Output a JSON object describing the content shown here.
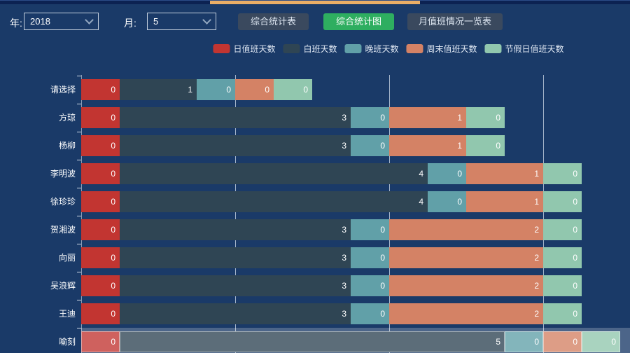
{
  "header": {
    "year_label": "年:",
    "year_value": "2018",
    "month_label": "月:",
    "month_value": "5",
    "buttons": [
      {
        "label": "综合统计表",
        "style": "dark"
      },
      {
        "label": "综合统计图",
        "style": "green",
        "active": true
      },
      {
        "label": "月值班情况一览表",
        "style": "dark"
      }
    ],
    "active_tab_color": "#e9ad66",
    "accent_green": "#2eae60"
  },
  "legend": [
    {
      "label": "日值班天数",
      "color": "#c23531"
    },
    {
      "label": "白班天数",
      "color": "#2f4554"
    },
    {
      "label": "晚班天数",
      "color": "#61a0a8"
    },
    {
      "label": "周末值班天数",
      "color": "#d48265"
    },
    {
      "label": "节假日值班天数",
      "color": "#91c7ae"
    }
  ],
  "chart_data": {
    "type": "bar",
    "orientation": "horizontal",
    "stacked": true,
    "categories": [
      "请选择",
      "方琼",
      "杨柳",
      "李明波",
      "徐珍珍",
      "贺湘波",
      "向丽",
      "吴浪辉",
      "王迪",
      "喻刻"
    ],
    "series": [
      {
        "name": "日值班天数",
        "color": "#c23531",
        "values": [
          0,
          0,
          0,
          0,
          0,
          0,
          0,
          0,
          0,
          0
        ]
      },
      {
        "name": "白班天数",
        "color": "#2f4554",
        "values": [
          1,
          3,
          3,
          4,
          4,
          3,
          3,
          3,
          3,
          5
        ]
      },
      {
        "name": "晚班天数",
        "color": "#61a0a8",
        "values": [
          0,
          0,
          0,
          0,
          0,
          0,
          0,
          0,
          0,
          0
        ]
      },
      {
        "name": "周末值班天数",
        "color": "#d48265",
        "values": [
          0,
          1,
          1,
          1,
          1,
          2,
          2,
          2,
          2,
          0
        ]
      },
      {
        "name": "节假日值班天数",
        "color": "#91c7ae",
        "values": [
          0,
          0,
          0,
          0,
          0,
          0,
          0,
          0,
          0,
          0
        ]
      }
    ],
    "value_labels": "inside-right",
    "x_axis_min": 0,
    "x_gridline_values": [
      2,
      4,
      6
    ],
    "grid_on": true,
    "legend_position": "top",
    "highlighted_row": "喻刻"
  }
}
